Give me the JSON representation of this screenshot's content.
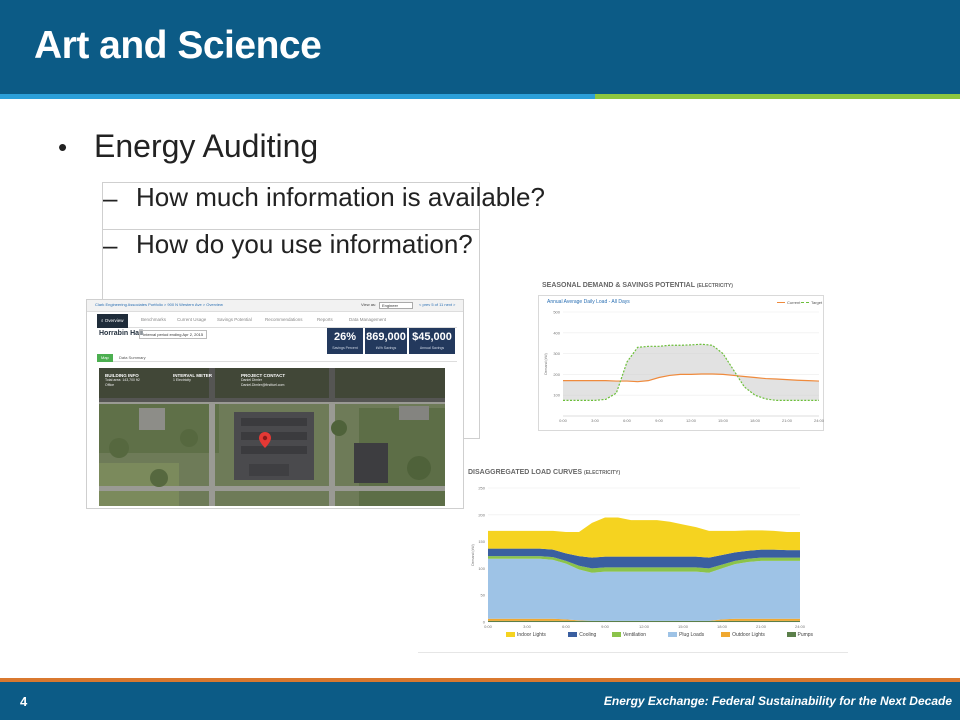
{
  "slide": {
    "title": "Art and Science",
    "page_number": "4",
    "footer": "Energy Exchange: Federal Sustainability for the Next Decade"
  },
  "bullets": {
    "main": "Energy Auditing",
    "sub": [
      "How much information is available?",
      "How do you use information?"
    ]
  },
  "dashboard": {
    "breadcrumb": "Clark Engineering Associates Portfolio > 900 N Western Ave > Overview",
    "view_label": "View as:",
    "view_value": "Engineer",
    "pager": "< prev  5 of 11  next >",
    "nav": [
      "Overview",
      "Benchmarks",
      "Current Usage",
      "Savings Potential",
      "Recommendations",
      "Reports",
      "Data Management"
    ],
    "building": "Horrabin Hall",
    "period": "Interval period ending Apr 2, 2015",
    "kpis": [
      {
        "value": "26%",
        "label": "Savings Percent"
      },
      {
        "value": "869,000",
        "label": "kWh Savings"
      },
      {
        "value": "$45,000",
        "label": "Annual Savings"
      }
    ],
    "tabs": [
      "Map",
      "Data Summary"
    ],
    "info": {
      "building_info_title": "BUILDING INFO",
      "building_info_lines": [
        "Total area: 143,700 ft2",
        "Office"
      ],
      "interval_meter_title": "INTERVAL METER",
      "interval_meter_lines": [
        "1 Electricity"
      ],
      "project_contact_title": "PROJECT CONTACT",
      "project_contact_lines": [
        "Daniel Dimler",
        "Daniel.Dimler@firstfuel.com"
      ]
    },
    "colors": {
      "navy": "#23395d",
      "green": "#4caf50"
    }
  },
  "chart_data": [
    {
      "type": "line",
      "title": "SEASONAL DEMAND & SAVINGS POTENTIAL",
      "title_suffix": "(ELECTRICITY)",
      "subtitle": "Annual Average Daily Load - All Days",
      "ylabel": "Demand (kW)",
      "ylim": [
        0,
        500
      ],
      "yticks": [
        100,
        200,
        300,
        400,
        500
      ],
      "x": [
        "0:00",
        "1:00",
        "2:00",
        "3:00",
        "4:00",
        "5:00",
        "6:00",
        "7:00",
        "8:00",
        "9:00",
        "10:00",
        "11:00",
        "12:00",
        "13:00",
        "14:00",
        "15:00",
        "16:00",
        "17:00",
        "18:00",
        "19:00",
        "20:00",
        "21:00",
        "22:00",
        "23:00",
        "24:00"
      ],
      "xticks": [
        "0:00",
        "3:00",
        "6:00",
        "9:00",
        "12:00",
        "15:00",
        "18:00",
        "21:00",
        "24:00"
      ],
      "series": [
        {
          "name": "Current",
          "color": "#ef8a3c",
          "values": [
            170,
            170,
            170,
            170,
            170,
            168,
            168,
            165,
            170,
            185,
            195,
            200,
            200,
            202,
            202,
            200,
            195,
            190,
            185,
            180,
            178,
            175,
            172,
            170,
            168
          ]
        },
        {
          "name": "Target",
          "color": "#6cbf3a",
          "style": "dashed",
          "values": [
            75,
            75,
            75,
            75,
            80,
            110,
            260,
            330,
            335,
            335,
            340,
            340,
            342,
            345,
            340,
            300,
            220,
            140,
            100,
            82,
            75,
            75,
            75,
            75,
            75
          ]
        }
      ],
      "grid": true,
      "legend": "top-right"
    },
    {
      "type": "area",
      "title": "DISAGGREGATED LOAD CURVES",
      "title_suffix": "(ELECTRICITY)",
      "ylabel": "Demand (kW)",
      "ylim": [
        0,
        250
      ],
      "yticks": [
        0,
        50,
        100,
        150,
        200,
        250
      ],
      "x": [
        "0:00",
        "1:00",
        "2:00",
        "3:00",
        "4:00",
        "5:00",
        "6:00",
        "7:00",
        "8:00",
        "9:00",
        "10:00",
        "11:00",
        "12:00",
        "13:00",
        "14:00",
        "15:00",
        "16:00",
        "17:00",
        "18:00",
        "19:00",
        "20:00",
        "21:00",
        "22:00",
        "23:00",
        "24:00"
      ],
      "xticks": [
        "0:00",
        "3:00",
        "6:00",
        "9:00",
        "12:00",
        "15:00",
        "18:00",
        "21:00",
        "24:00"
      ],
      "series": [
        {
          "name": "Pumps",
          "color": "#5b7f4a",
          "values": [
            2,
            2,
            2,
            2,
            2,
            2,
            2,
            2,
            2,
            2,
            2,
            2,
            2,
            2,
            2,
            2,
            2,
            2,
            2,
            2,
            2,
            2,
            2,
            2,
            2
          ]
        },
        {
          "name": "Outdoor Lights",
          "color": "#f0a830",
          "values": [
            4,
            4,
            4,
            4,
            4,
            4,
            3,
            1,
            0,
            0,
            0,
            0,
            0,
            0,
            0,
            0,
            0,
            0,
            3,
            4,
            4,
            4,
            4,
            4,
            4
          ]
        },
        {
          "name": "Plug Loads",
          "color": "#9ec3e6",
          "values": [
            112,
            112,
            112,
            112,
            112,
            110,
            104,
            95,
            90,
            92,
            92,
            92,
            92,
            92,
            92,
            92,
            92,
            90,
            95,
            102,
            106,
            108,
            108,
            108,
            108
          ]
        },
        {
          "name": "Ventilation",
          "color": "#8bc34a",
          "values": [
            5,
            5,
            5,
            5,
            5,
            5,
            5,
            7,
            8,
            8,
            8,
            8,
            8,
            8,
            8,
            8,
            8,
            8,
            7,
            6,
            6,
            6,
            6,
            6,
            6
          ]
        },
        {
          "name": "Cooling",
          "color": "#3a5fa0",
          "values": [
            14,
            14,
            14,
            14,
            14,
            14,
            14,
            18,
            20,
            20,
            20,
            20,
            20,
            20,
            20,
            20,
            20,
            20,
            18,
            16,
            15,
            15,
            15,
            14,
            14
          ]
        },
        {
          "name": "Indoor Lights",
          "color": "#f5d320",
          "values": [
            33,
            33,
            33,
            33,
            33,
            35,
            40,
            45,
            65,
            73,
            73,
            68,
            68,
            68,
            65,
            60,
            55,
            50,
            45,
            40,
            38,
            36,
            35,
            34,
            34
          ]
        }
      ],
      "legend_order": [
        "Indoor Lights",
        "Cooling",
        "Ventilation",
        "Plug Loads",
        "Outdoor Lights",
        "Pumps"
      ],
      "grid": true,
      "legend": "bottom"
    }
  ]
}
